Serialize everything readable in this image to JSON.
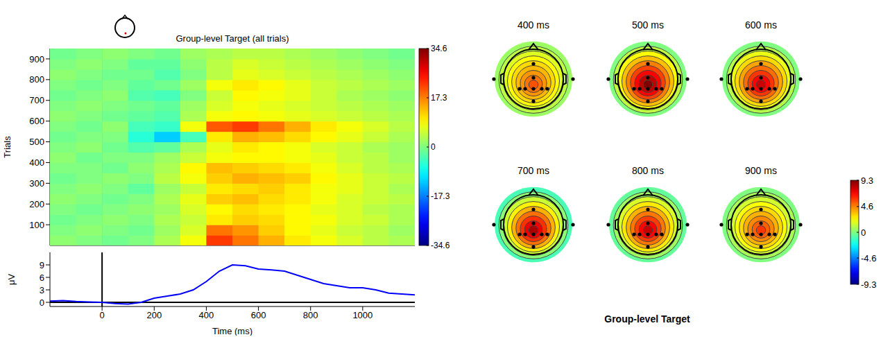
{
  "chart_data": [
    {
      "type": "heatmap",
      "title": "Group-level Target (all trials)",
      "ylabel": "Trials",
      "tick_labels": "y",
      "x_bins": [
        -200,
        -100,
        0,
        100,
        200,
        300,
        400,
        500,
        600,
        700,
        800,
        900,
        1000,
        1100,
        1200
      ],
      "y_bins": [
        0,
        50,
        100,
        150,
        200,
        250,
        300,
        350,
        400,
        450,
        500,
        550,
        600,
        650,
        700,
        750,
        800,
        850,
        900,
        950
      ],
      "xlim": [
        -200,
        1200
      ],
      "ylim": [
        0,
        950
      ],
      "yticks": [
        100,
        200,
        300,
        400,
        500,
        600,
        700,
        800,
        900
      ],
      "cells": [
        [
          1,
          0,
          -1,
          0,
          3,
          8,
          22,
          18,
          14,
          10,
          8,
          6,
          4,
          3
        ],
        [
          0,
          1,
          0,
          -1,
          2,
          6,
          18,
          16,
          12,
          9,
          7,
          5,
          4,
          2
        ],
        [
          -1,
          0,
          1,
          0,
          3,
          5,
          10,
          12,
          11,
          9,
          8,
          6,
          5,
          3
        ],
        [
          0,
          -1,
          0,
          1,
          2,
          6,
          9,
          11,
          10,
          9,
          7,
          6,
          4,
          3
        ],
        [
          1,
          0,
          -1,
          0,
          3,
          7,
          12,
          13,
          11,
          10,
          8,
          6,
          5,
          4
        ],
        [
          0,
          1,
          0,
          -2,
          2,
          5,
          10,
          11,
          12,
          10,
          8,
          7,
          5,
          3
        ],
        [
          -1,
          0,
          1,
          0,
          4,
          8,
          12,
          14,
          13,
          12,
          9,
          7,
          5,
          4
        ],
        [
          0,
          0,
          -1,
          1,
          3,
          9,
          13,
          12,
          11,
          10,
          8,
          6,
          4,
          3
        ],
        [
          1,
          -1,
          0,
          0,
          2,
          5,
          8,
          9,
          9,
          8,
          7,
          5,
          4,
          2
        ],
        [
          0,
          1,
          -1,
          -3,
          -2,
          3,
          7,
          10,
          9,
          8,
          6,
          5,
          3,
          2
        ],
        [
          -1,
          0,
          0,
          -6,
          -12,
          -4,
          10,
          14,
          13,
          11,
          9,
          7,
          5,
          3
        ],
        [
          0,
          -1,
          1,
          -4,
          -5,
          8,
          20,
          22,
          18,
          14,
          10,
          8,
          6,
          4
        ],
        [
          1,
          0,
          -1,
          -2,
          -3,
          3,
          8,
          9,
          8,
          7,
          6,
          5,
          4,
          3
        ],
        [
          0,
          1,
          0,
          -1,
          -2,
          2,
          6,
          8,
          7,
          6,
          5,
          4,
          3,
          2
        ],
        [
          -1,
          0,
          1,
          -3,
          -4,
          0,
          5,
          9,
          8,
          7,
          5,
          3,
          2,
          1
        ],
        [
          0,
          -1,
          0,
          -2,
          -1,
          2,
          8,
          10,
          9,
          7,
          5,
          4,
          3,
          2
        ],
        [
          1,
          0,
          -1,
          -1,
          -3,
          0,
          4,
          7,
          6,
          5,
          4,
          3,
          2,
          1
        ],
        [
          0,
          1,
          0,
          -2,
          -2,
          1,
          4,
          6,
          5,
          4,
          3,
          2,
          1,
          0
        ],
        [
          -1,
          0,
          1,
          0,
          -1,
          2,
          3,
          4,
          4,
          3,
          2,
          1,
          0,
          -1
        ]
      ],
      "color_lim": [
        -34.6,
        34.6
      ],
      "color_ticks": [
        34.6,
        17.3,
        0,
        -17.3,
        -34.6
      ],
      "reference_lines": {
        "x": 0
      }
    },
    {
      "type": "line",
      "xlabel": "Time (ms)",
      "ylabel": "μV",
      "color": "#0000ff",
      "x": [
        -200,
        -150,
        -100,
        -50,
        0,
        50,
        100,
        150,
        200,
        250,
        300,
        350,
        400,
        450,
        500,
        550,
        600,
        650,
        700,
        750,
        800,
        850,
        900,
        950,
        1000,
        1050,
        1100,
        1150,
        1200
      ],
      "values": [
        0.3,
        0.4,
        0.2,
        0.1,
        0,
        -0.3,
        -0.4,
        0,
        1,
        1.5,
        2,
        3,
        5,
        7.5,
        9,
        8.8,
        8,
        7.8,
        7.5,
        6.5,
        5.5,
        4.5,
        4,
        3.5,
        3.5,
        3,
        2.2,
        2,
        1.8
      ],
      "xlim": [
        -200,
        1200
      ],
      "xticks": [
        200,
        400,
        600,
        800,
        1000,
        0
      ],
      "ylim": [
        -1,
        12
      ],
      "yticks": [
        0,
        3,
        6,
        9
      ],
      "reference_lines": {
        "x": 0,
        "y": 0
      }
    },
    {
      "type": "topomap",
      "title": "Group-level Target",
      "maps": [
        {
          "label": "400 ms",
          "peak": 5.5,
          "edge": 0.5
        },
        {
          "label": "500 ms",
          "peak": 9.3,
          "edge": 0
        },
        {
          "label": "600 ms",
          "peak": 8,
          "edge": 0
        },
        {
          "label": "700 ms",
          "peak": 8.5,
          "edge": -1
        },
        {
          "label": "800 ms",
          "peak": 8,
          "edge": -0.5
        },
        {
          "label": "900 ms",
          "peak": 6,
          "edge": 0
        }
      ],
      "color_lim": [
        -9.3,
        9.3
      ],
      "color_ticks": [
        9.3,
        4.6,
        0,
        -4.6,
        -9.3
      ]
    }
  ]
}
